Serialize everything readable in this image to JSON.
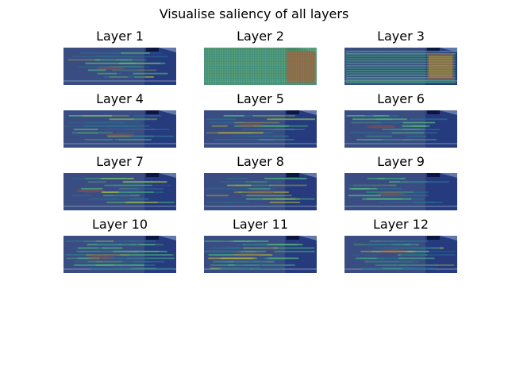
{
  "figure": {
    "suptitle": "Visualise saliency of all layers",
    "panels": [
      {
        "title": "Layer 1",
        "overlay": "none"
      },
      {
        "title": "Layer 2",
        "overlay": "dense-grid"
      },
      {
        "title": "Layer 3",
        "overlay": "grid-stripes"
      },
      {
        "title": "Layer 4",
        "overlay": "stripes"
      },
      {
        "title": "Layer 5",
        "overlay": "stripes"
      },
      {
        "title": "Layer 6",
        "overlay": "stripes"
      },
      {
        "title": "Layer 7",
        "overlay": "stripes"
      },
      {
        "title": "Layer 8",
        "overlay": "stripes"
      },
      {
        "title": "Layer 9",
        "overlay": "stripes"
      },
      {
        "title": "Layer 10",
        "overlay": "patchy"
      },
      {
        "title": "Layer 11",
        "overlay": "patchy"
      },
      {
        "title": "Layer 12",
        "overlay": "patchy"
      }
    ],
    "colors": {
      "base_blue": "#3a4d82",
      "right_panel": "#263a7e",
      "heat_low": "#2a6f8f",
      "heat_mid": "#4fb57a",
      "heat_high": "#b7b83a",
      "heat_hot": "#c0542a"
    }
  }
}
